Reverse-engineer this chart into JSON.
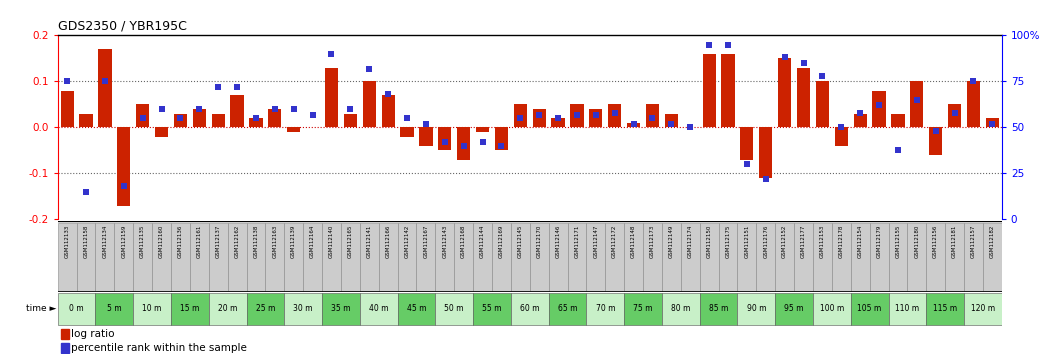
{
  "title": "GDS2350 / YBR195C",
  "samples": [
    "GSM112133",
    "GSM112158",
    "GSM112134",
    "GSM112159",
    "GSM112135",
    "GSM112160",
    "GSM112136",
    "GSM112161",
    "GSM112137",
    "GSM112162",
    "GSM112138",
    "GSM112163",
    "GSM112139",
    "GSM112164",
    "GSM112140",
    "GSM112165",
    "GSM112141",
    "GSM112166",
    "GSM112142",
    "GSM112167",
    "GSM112143",
    "GSM112168",
    "GSM112144",
    "GSM112169",
    "GSM112145",
    "GSM112170",
    "GSM112146",
    "GSM112171",
    "GSM112147",
    "GSM112172",
    "GSM112148",
    "GSM112173",
    "GSM112149",
    "GSM112174",
    "GSM112150",
    "GSM112175",
    "GSM112151",
    "GSM112176",
    "GSM112152",
    "GSM112177",
    "GSM112153",
    "GSM112178",
    "GSM112154",
    "GSM112179",
    "GSM112155",
    "GSM112180",
    "GSM112156",
    "GSM112181",
    "GSM112157",
    "GSM112182"
  ],
  "time_labels": [
    "0 m",
    "5 m",
    "10 m",
    "15 m",
    "20 m",
    "25 m",
    "30 m",
    "35 m",
    "40 m",
    "45 m",
    "50 m",
    "55 m",
    "60 m",
    "65 m",
    "70 m",
    "75 m",
    "80 m",
    "85 m",
    "90 m",
    "95 m",
    "100 m",
    "105 m",
    "110 m",
    "115 m",
    "120 m"
  ],
  "log_ratio": [
    0.08,
    0.03,
    0.17,
    -0.17,
    0.05,
    -0.02,
    0.03,
    0.04,
    0.03,
    0.07,
    0.02,
    0.04,
    -0.01,
    0.0,
    0.13,
    0.03,
    0.1,
    0.07,
    -0.02,
    -0.04,
    -0.05,
    -0.07,
    -0.01,
    -0.05,
    0.05,
    0.04,
    0.02,
    0.05,
    0.04,
    0.05,
    0.01,
    0.05,
    0.03,
    0.0,
    0.16,
    0.16,
    -0.07,
    -0.11,
    0.15,
    0.13,
    0.1,
    -0.04,
    0.03,
    0.08,
    0.03,
    0.1,
    -0.06,
    0.05,
    0.1,
    0.02
  ],
  "percentile_rank_pct": [
    75,
    15,
    75,
    18,
    55,
    60,
    55,
    60,
    72,
    72,
    55,
    60,
    60,
    57,
    90,
    60,
    82,
    68,
    55,
    52,
    42,
    40,
    42,
    40,
    55,
    57,
    55,
    57,
    57,
    58,
    52,
    55,
    52,
    50,
    95,
    95,
    30,
    22,
    88,
    85,
    78,
    50,
    58,
    62,
    38,
    65,
    48,
    58,
    75,
    52
  ],
  "bar_color": "#cc2200",
  "dot_color": "#3333cc",
  "sample_box_color": "#cccccc",
  "sample_box_edge": "#888888",
  "time_color_a": "#c8f0c8",
  "time_color_b": "#66cc66",
  "ylim": [
    -0.2,
    0.2
  ],
  "yticks_left": [
    -0.2,
    -0.1,
    0.0,
    0.1,
    0.2
  ],
  "yticks_right": [
    0,
    25,
    50,
    75,
    100
  ],
  "dotted_line_color": "#666666",
  "zero_line_color": "#cc0000",
  "chart_bg": "#ffffff"
}
